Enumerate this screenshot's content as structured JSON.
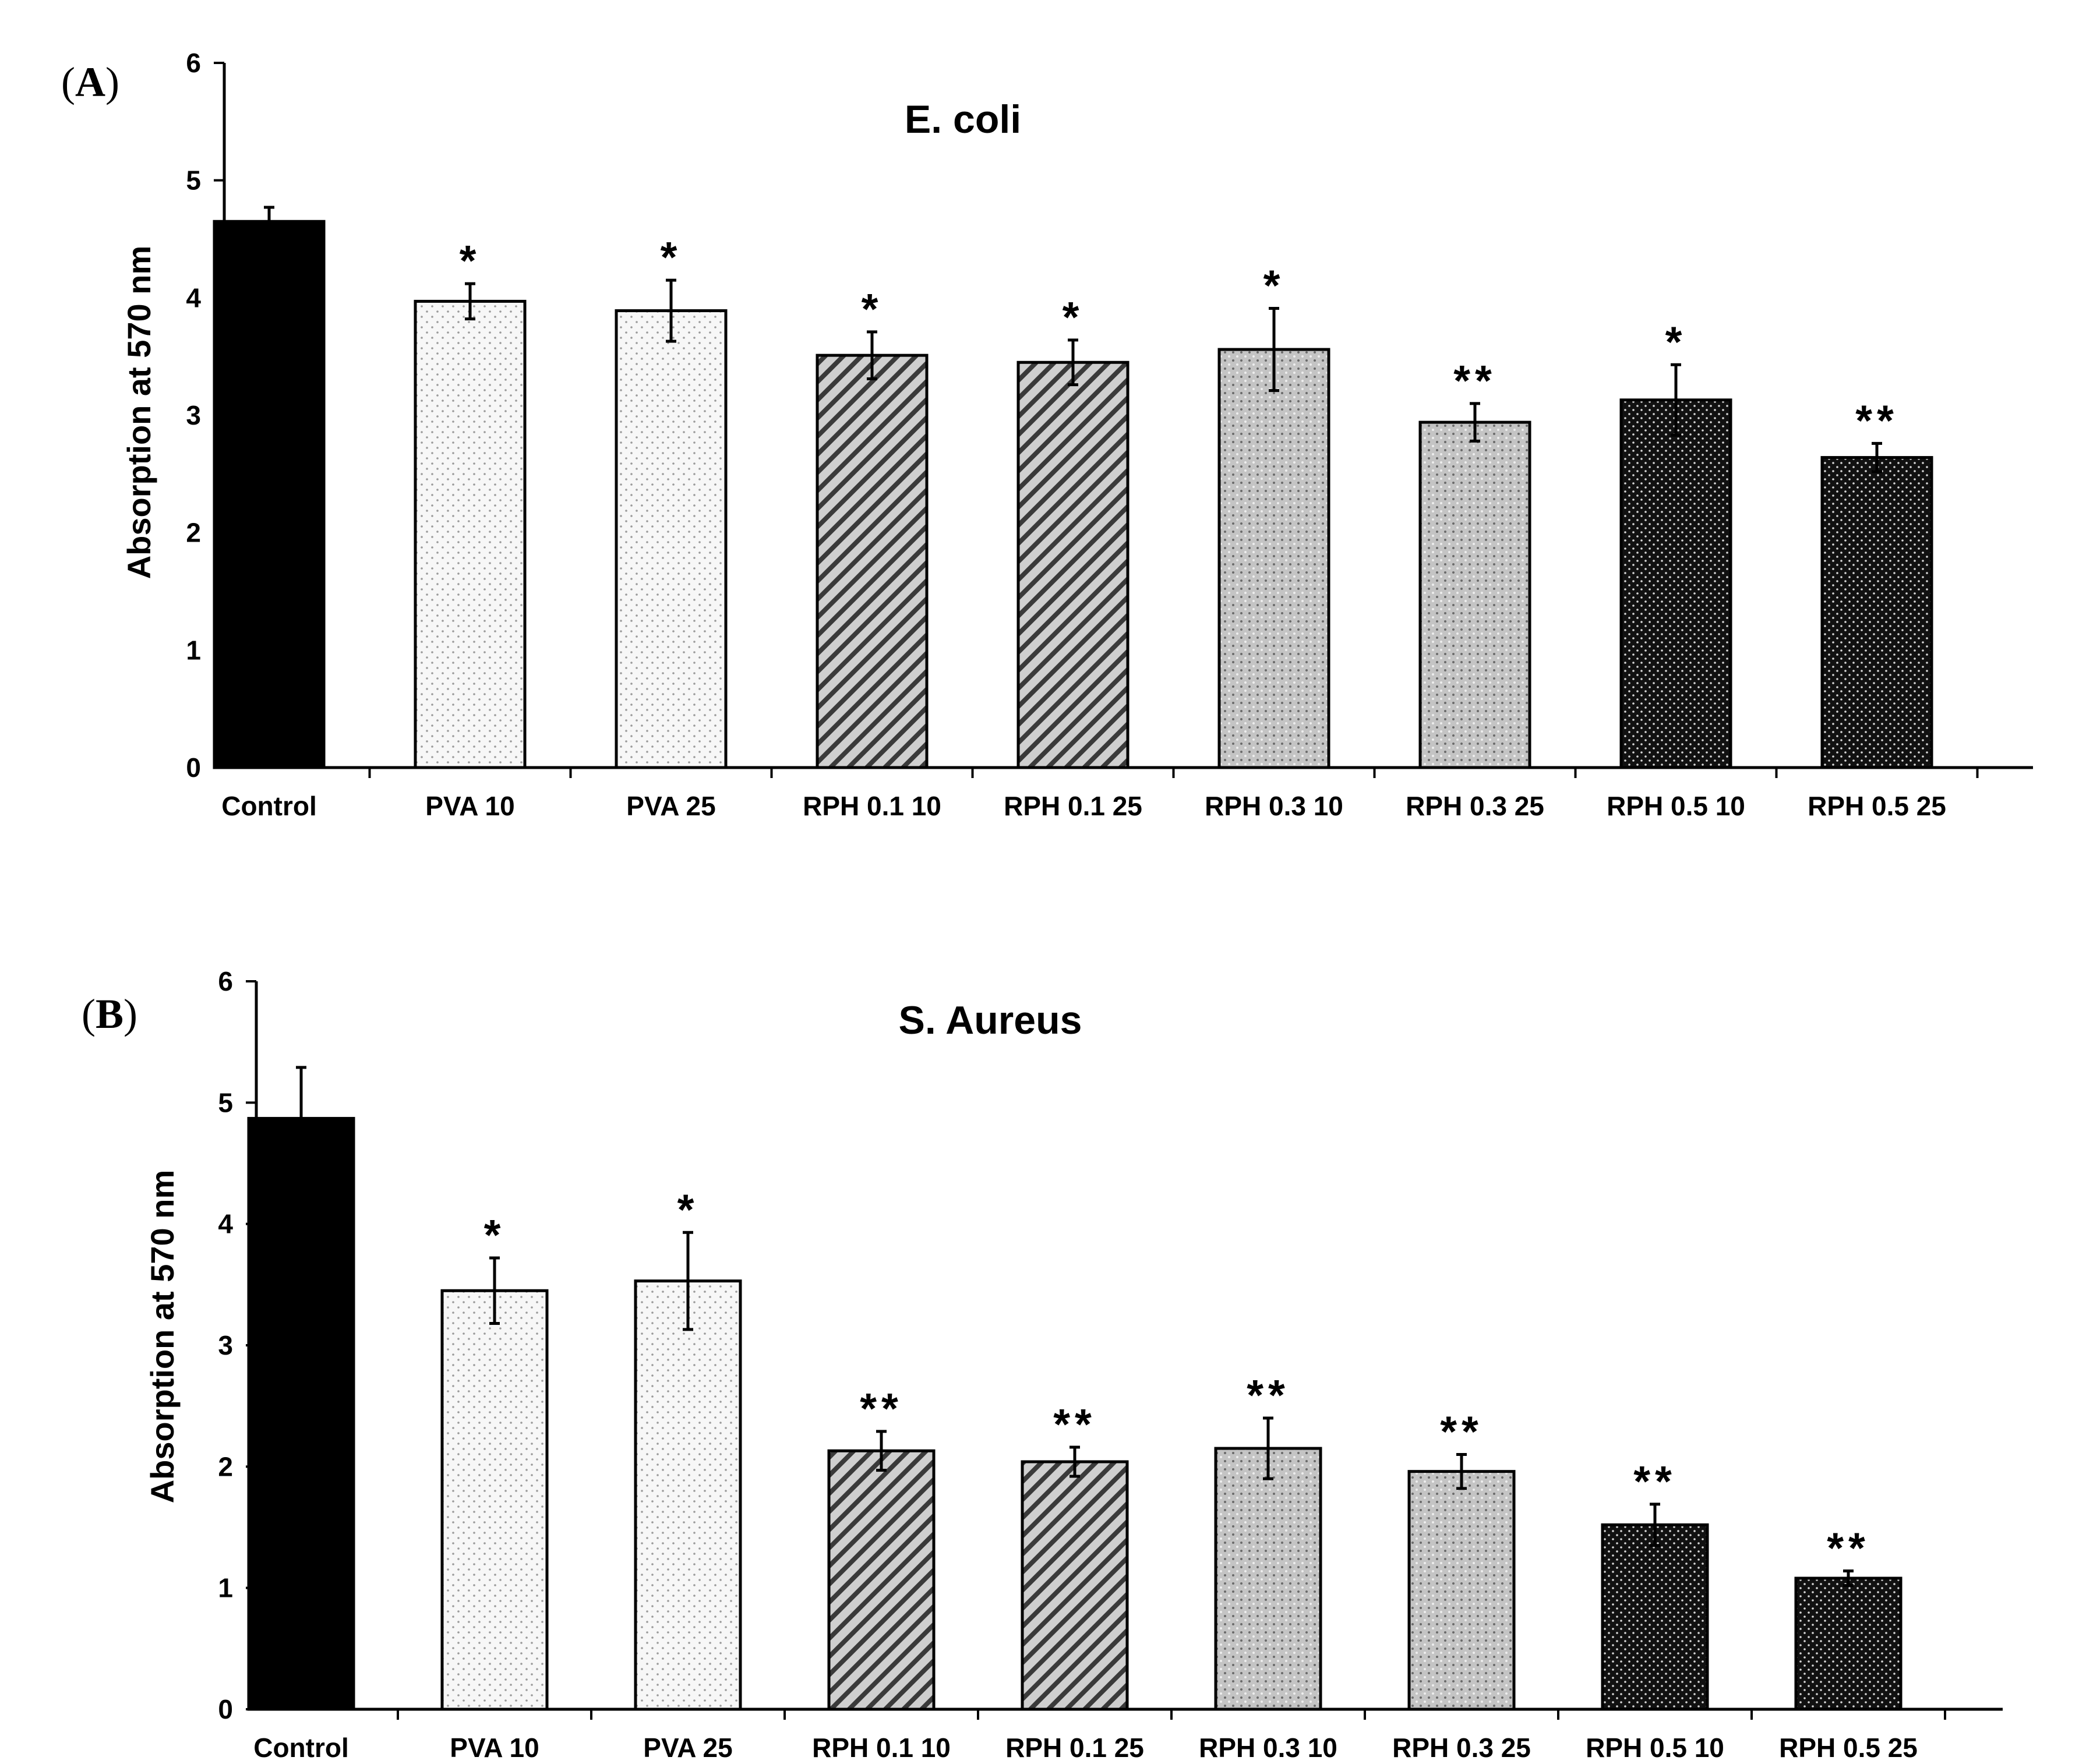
{
  "chart_data": [
    {
      "panel": "(A)",
      "panel_letter": "A",
      "type": "bar",
      "title": "E. coli",
      "xlabel": "",
      "ylabel": "Absorption at 570 nm",
      "ylim": [
        0,
        6
      ],
      "yticks": [
        0,
        1,
        2,
        3,
        4,
        5,
        6
      ],
      "grid": false,
      "categories": [
        "Control",
        "PVA 10",
        "PVA 25",
        "RPH 0.1 10",
        "RPH 0.1 25",
        "RPH 0.3 10",
        "RPH 0.3 25",
        "RPH 0.5 10",
        "RPH 0.5 25"
      ],
      "values": [
        4.65,
        3.97,
        3.89,
        3.51,
        3.45,
        3.56,
        2.94,
        3.13,
        2.64
      ],
      "errors": [
        0.12,
        0.15,
        0.26,
        0.2,
        0.19,
        0.35,
        0.16,
        0.3,
        0.12
      ],
      "significance": [
        "",
        "*",
        "*",
        "*",
        "*",
        "*",
        "**",
        "*",
        "**"
      ],
      "patterns": [
        "solid-black",
        "light-dots",
        "light-dots",
        "hatch",
        "hatch",
        "gray-dots",
        "gray-dots",
        "dark-dots",
        "dark-dots"
      ]
    },
    {
      "panel": "(B)",
      "panel_letter": "B",
      "type": "bar",
      "title": "S. Aureus",
      "xlabel": "",
      "ylabel": "Absorption at 570 nm",
      "ylim": [
        0,
        6
      ],
      "yticks": [
        0,
        1,
        2,
        3,
        4,
        5,
        6
      ],
      "grid": false,
      "categories": [
        "Control",
        "PVA 10",
        "PVA 25",
        "RPH 0.1 10",
        "RPH 0.1 25",
        "RPH 0.3 10",
        "RPH 0.3 25",
        "RPH 0.5 10",
        "RPH 0.5 25"
      ],
      "values": [
        4.87,
        3.45,
        3.53,
        2.13,
        2.04,
        2.15,
        1.96,
        1.52,
        1.08
      ],
      "errors": [
        0.42,
        0.27,
        0.4,
        0.16,
        0.12,
        0.25,
        0.14,
        0.17,
        0.06
      ],
      "significance": [
        "",
        "*",
        "*",
        "**",
        "**",
        "**",
        "**",
        "**",
        "**"
      ],
      "patterns": [
        "solid-black",
        "light-dots",
        "light-dots",
        "hatch",
        "hatch",
        "gray-dots",
        "gray-dots",
        "dark-dots",
        "dark-dots"
      ]
    }
  ]
}
